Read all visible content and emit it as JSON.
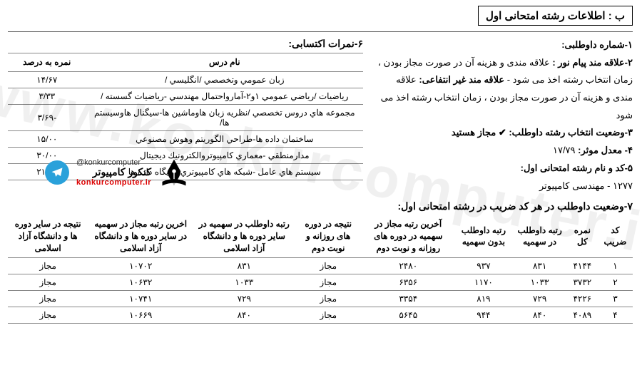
{
  "section_title": "ب : اطلاعات رشته امتحانی اول",
  "info": {
    "line1_label": "۱-شماره داوطلبی:",
    "line2": "۲-علاقه مند پیام نور : علاقه مندی و هزینه آن در صورت مجاز بودن ، زمان انتخاب رشته اخذ می شود - علاقه مند غیر انتفاعی: علاقه مندی و هزینه آن در صورت مجاز بودن ، زمان انتخاب رشته اخذ می شود",
    "line3_label": "۳-وضعیت انتخاب رشته داوطلب:",
    "line3_value": "✔ مجاز هستید",
    "line4_label": "۴- معدل موثر:",
    "line4_value": "۱۷/۷۹",
    "line5_label": "۵-کد و نام رشته امتحانی اول:",
    "line5_value": "۱۲۷۷ - مهندسی کامپیوتر"
  },
  "grades": {
    "heading": "۶-نمرات اکتسابی:",
    "cols": {
      "course": "نام درس",
      "pct": "نمره به درصد"
    },
    "rows": [
      {
        "course": "زبان عمومي وتخصصي /انگليسي /",
        "pct": "۱۴/۶۷"
      },
      {
        "course": "رياضيات /رياضي عمومي ۱و۲-آمارواحتمال مهندسي -رياضيات گسسته /",
        "pct": "۳/۳۳"
      },
      {
        "course": "مجموعه هاي دروس تخصصي /نظريه زبان هاوماشين ها-سيگنال هاوسيستم ها/",
        "pct": "-۳/۶۹"
      },
      {
        "course": "ساختمان داده ها-طراحي الگوريتم وهوش مصنوعي",
        "pct": "۱۵/۰۰"
      },
      {
        "course": "مدارمنطقي -معماري كامپيوتروالكترونيك ديجيتال",
        "pct": "۳۰/۰۰"
      },
      {
        "course": "سيستم هاي عامل -شبكه هاي كامپيوتري وپايگاه داده ها",
        "pct": "۲۱/۰۵"
      }
    ]
  },
  "status": {
    "heading": "۷-وضعیت داوطلب در هر کد ضریب در رشته امتحانی اول:",
    "cols": [
      "کد ضریب",
      "نمره کل",
      "رتبه داوطلب در سهمیه",
      "رتبه داوطلب بدون سهمیه",
      "آخرین رتبه مجاز در سهمیه در دوره های روزانه و نوبت دوم",
      "نتیجه در دوره های روزانه و نوبت دوم",
      "رتبه داوطلب در سهمیه در سایر دوره ها و دانشگاه آزاد اسلامی",
      "اخرین رتبه مجاز در سهمیه در سایر دوره ها و دانشگاه آزاد اسلامی",
      "نتیجه در سایر دوره ها و دانشگاه آزاد اسلامی"
    ],
    "rows": [
      [
        "۱",
        "۴۱۴۴",
        "۸۳۱",
        "۹۳۷",
        "۲۴۸۰",
        "مجاز",
        "۸۳۱",
        "۱۰۷۰۲",
        "مجاز"
      ],
      [
        "۲",
        "۳۷۳۲",
        "۱۰۳۳",
        "۱۱۷۰",
        "۶۳۵۶",
        "مجاز",
        "۱۰۳۳",
        "۱۰۶۳۲",
        "مجاز"
      ],
      [
        "۳",
        "۴۲۲۶",
        "۷۲۹",
        "۸۱۹",
        "۳۳۵۴",
        "مجاز",
        "۷۲۹",
        "۱۰۷۴۱",
        "مجاز"
      ],
      [
        "۴",
        "۴۰۸۹",
        "۸۴۰",
        "۹۴۴",
        "۵۶۴۵",
        "مجاز",
        "۸۴۰",
        "۱۰۶۶۹",
        "مجاز"
      ]
    ]
  },
  "brand": {
    "fa": "کنکور کامپیوتر",
    "en": "konkurcomputer.ir",
    "handle": "@konkurcomputer"
  },
  "watermark": "www.konkurcomputer.ir",
  "colors": {
    "text": "#000000",
    "rule": "#888888",
    "brand_red": "#d00000",
    "telegram": "#2aa1da",
    "watermark": "rgba(0,0,0,0.06)"
  }
}
